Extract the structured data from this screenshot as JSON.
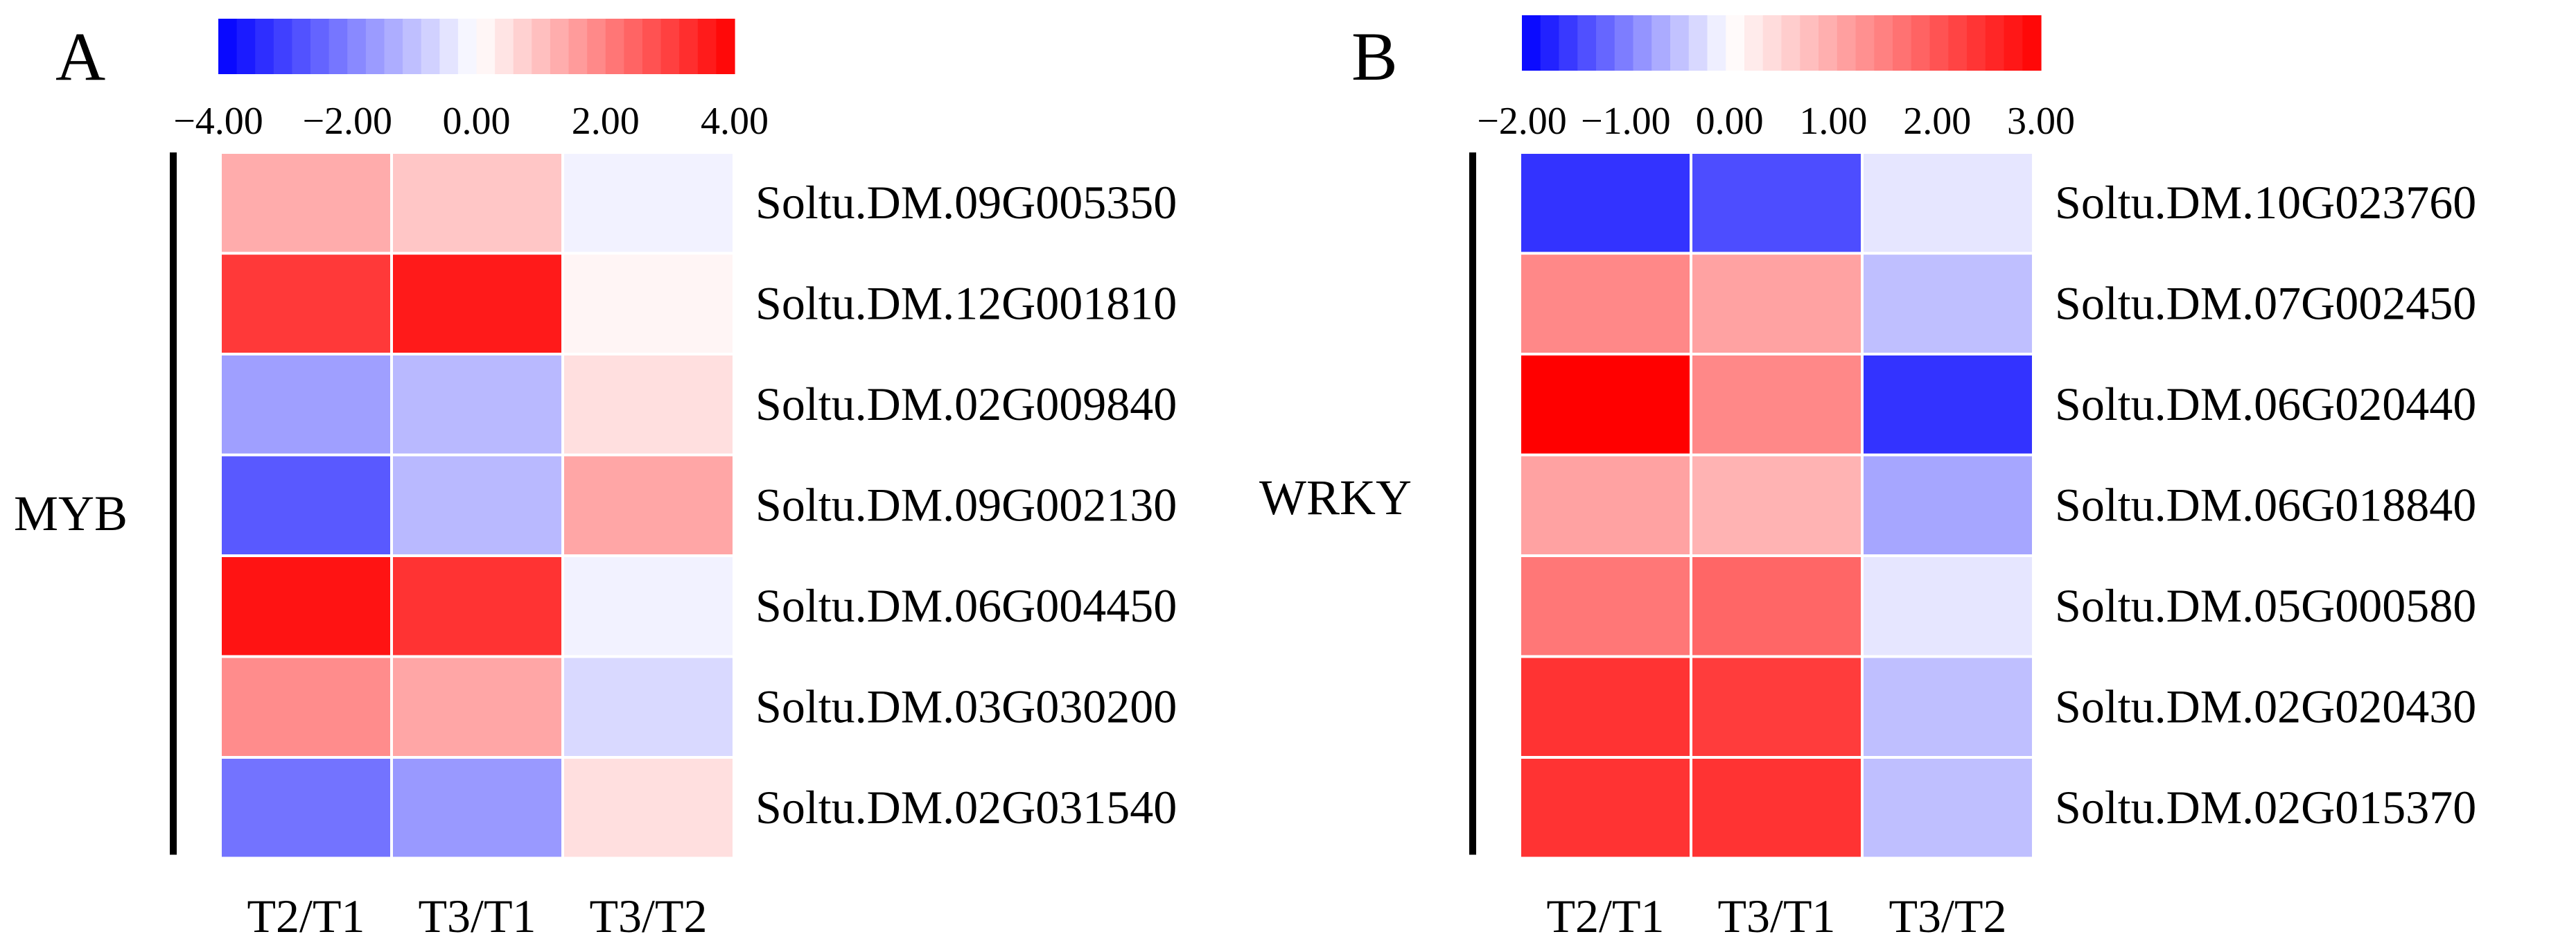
{
  "chart_data": [
    {
      "type": "heatmap",
      "panel_label": "A",
      "group_label": "MYB",
      "columns": [
        "T2/T1",
        "T3/T1",
        "T3/T2"
      ],
      "rows": [
        {
          "gene": "Soltu.DM.09G005350",
          "values": [
            1.3,
            0.9,
            -0.2
          ]
        },
        {
          "gene": "Soltu.DM.12G001810",
          "values": [
            3.1,
            3.6,
            0.15
          ]
        },
        {
          "gene": "Soltu.DM.02G009840",
          "values": [
            -1.5,
            -1.1,
            0.5
          ]
        },
        {
          "gene": "Soltu.DM.09G002130",
          "values": [
            -2.6,
            -1.1,
            1.4
          ]
        },
        {
          "gene": "Soltu.DM.06G004450",
          "values": [
            3.7,
            3.2,
            -0.2
          ]
        },
        {
          "gene": "Soltu.DM.03G030200",
          "values": [
            1.8,
            1.4,
            -0.6
          ]
        },
        {
          "gene": "Soltu.DM.02G031540",
          "values": [
            -2.2,
            -1.6,
            0.5
          ]
        }
      ],
      "colorbar": {
        "min": -4,
        "max": 4,
        "ticks": [
          "−4.00",
          "−2.00",
          "0.00",
          "2.00",
          "4.00"
        ],
        "low_color": "#0000ff",
        "mid_color": "#ffffff",
        "high_color": "#ff0000"
      }
    },
    {
      "type": "heatmap",
      "panel_label": "B",
      "group_label": "WRKY",
      "columns": [
        "T2/T1",
        "T3/T1",
        "T3/T2"
      ],
      "rows": [
        {
          "gene": "Soltu.DM.10G023760",
          "values": [
            -1.6,
            -1.4,
            -0.2
          ]
        },
        {
          "gene": "Soltu.DM.07G002450",
          "values": [
            1.4,
            1.1,
            -0.5
          ]
        },
        {
          "gene": "Soltu.DM.06G020440",
          "values": [
            3.0,
            1.4,
            -1.6
          ]
        },
        {
          "gene": "Soltu.DM.06G018840",
          "values": [
            1.1,
            0.9,
            -0.7
          ]
        },
        {
          "gene": "Soltu.DM.05G000580",
          "values": [
            1.6,
            1.8,
            -0.2
          ]
        },
        {
          "gene": "Soltu.DM.02G020430",
          "values": [
            2.4,
            2.3,
            -0.5
          ]
        },
        {
          "gene": "Soltu.DM.02G015370",
          "values": [
            2.4,
            2.4,
            -0.5
          ]
        }
      ],
      "colorbar": {
        "min": -2,
        "max": 3,
        "ticks": [
          "−2.00",
          "−1.00",
          "0.00",
          "1.00",
          "2.00",
          "3.00"
        ],
        "low_color": "#0000ff",
        "mid_color": "#ffffff",
        "high_color": "#ff0000"
      }
    }
  ]
}
